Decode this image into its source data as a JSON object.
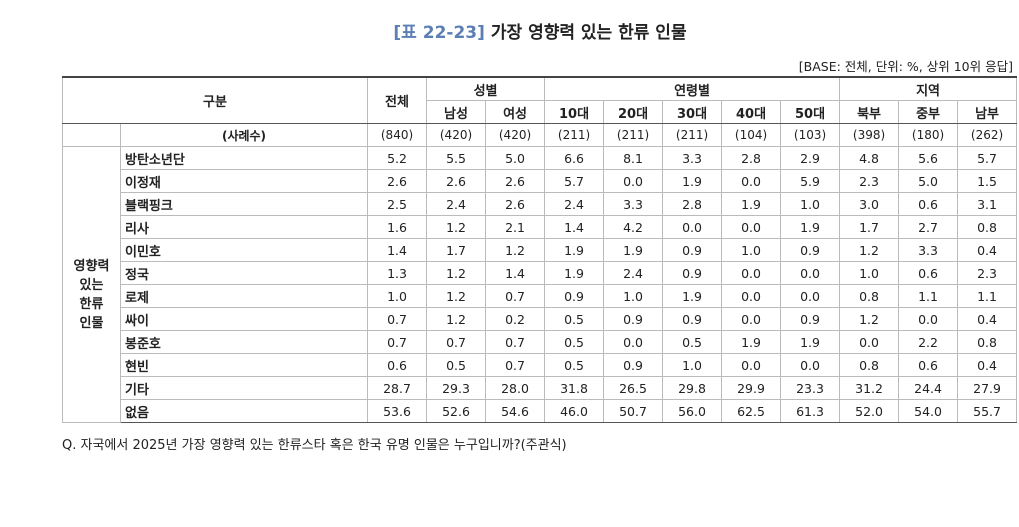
{
  "title": {
    "label": "[표 22-23]",
    "text": "가장 영향력 있는 한류 인물"
  },
  "base_note": "[BASE: 전체, 단위: %, 상위 10위 응답]",
  "table": {
    "header": {
      "category": "구분",
      "total": "전체",
      "groups": [
        {
          "label": "성별",
          "columns": [
            "남성",
            "여성"
          ]
        },
        {
          "label": "연령별",
          "columns": [
            "10대",
            "20대",
            "30대",
            "40대",
            "50대"
          ]
        },
        {
          "label": "지역",
          "columns": [
            "북부",
            "중부",
            "남부"
          ]
        }
      ]
    },
    "row_group": [
      "영향력",
      "있는",
      "한류",
      "인물"
    ],
    "sample_row": {
      "label": "(사례수)",
      "values": [
        "(840)",
        "(420)",
        "(420)",
        "(211)",
        "(211)",
        "(211)",
        "(104)",
        "(103)",
        "(398)",
        "(180)",
        "(262)"
      ]
    },
    "rows": [
      {
        "label": "방탄소년단",
        "values": [
          "5.2",
          "5.5",
          "5.0",
          "6.6",
          "8.1",
          "3.3",
          "2.8",
          "2.9",
          "4.8",
          "5.6",
          "5.7"
        ]
      },
      {
        "label": "이정재",
        "values": [
          "2.6",
          "2.6",
          "2.6",
          "5.7",
          "0.0",
          "1.9",
          "0.0",
          "5.9",
          "2.3",
          "5.0",
          "1.5"
        ]
      },
      {
        "label": "블랙핑크",
        "values": [
          "2.5",
          "2.4",
          "2.6",
          "2.4",
          "3.3",
          "2.8",
          "1.9",
          "1.0",
          "3.0",
          "0.6",
          "3.1"
        ]
      },
      {
        "label": "리사",
        "values": [
          "1.6",
          "1.2",
          "2.1",
          "1.4",
          "4.2",
          "0.0",
          "0.0",
          "1.9",
          "1.7",
          "2.7",
          "0.8"
        ]
      },
      {
        "label": "이민호",
        "values": [
          "1.4",
          "1.7",
          "1.2",
          "1.9",
          "1.9",
          "0.9",
          "1.0",
          "0.9",
          "1.2",
          "3.3",
          "0.4"
        ]
      },
      {
        "label": "정국",
        "values": [
          "1.3",
          "1.2",
          "1.4",
          "1.9",
          "2.4",
          "0.9",
          "0.0",
          "0.0",
          "1.0",
          "0.6",
          "2.3"
        ]
      },
      {
        "label": "로제",
        "values": [
          "1.0",
          "1.2",
          "0.7",
          "0.9",
          "1.0",
          "1.9",
          "0.0",
          "0.0",
          "0.8",
          "1.1",
          "1.1"
        ]
      },
      {
        "label": "싸이",
        "values": [
          "0.7",
          "1.2",
          "0.2",
          "0.5",
          "0.9",
          "0.9",
          "0.0",
          "0.9",
          "1.2",
          "0.0",
          "0.4"
        ]
      },
      {
        "label": "봉준호",
        "values": [
          "0.7",
          "0.7",
          "0.7",
          "0.5",
          "0.0",
          "0.5",
          "1.9",
          "1.9",
          "0.0",
          "2.2",
          "0.8"
        ]
      },
      {
        "label": "현빈",
        "values": [
          "0.6",
          "0.5",
          "0.7",
          "0.5",
          "0.9",
          "1.0",
          "0.0",
          "0.0",
          "0.8",
          "0.6",
          "0.4"
        ]
      },
      {
        "label": "기타",
        "values": [
          "28.7",
          "29.3",
          "28.0",
          "31.8",
          "26.5",
          "29.8",
          "29.9",
          "23.3",
          "31.2",
          "24.4",
          "27.9"
        ]
      },
      {
        "label": "없음",
        "values": [
          "53.6",
          "52.6",
          "54.6",
          "46.0",
          "50.7",
          "56.0",
          "62.5",
          "61.3",
          "52.0",
          "54.0",
          "55.7"
        ]
      }
    ]
  },
  "footnote": "Q. 자국에서 2025년 가장 영향력 있는 한류스타 혹은 한국 유명 인물은 누구입니까?(주관식)"
}
